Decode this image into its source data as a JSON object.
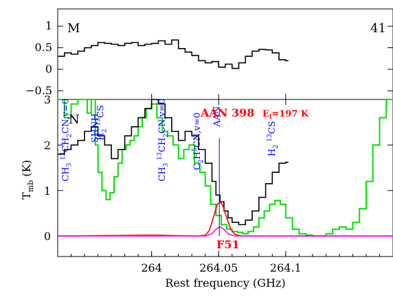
{
  "chart_data": [
    {
      "type": "line",
      "panel": "top",
      "corner_labels": {
        "left": "M",
        "right": "41"
      },
      "xlim": [
        263.93,
        264.18
      ],
      "ylim": [
        -0.7,
        1.4
      ],
      "y_ticks": [
        -0.5,
        0,
        0.5,
        1
      ],
      "y_tick_labels": [
        "−0.5",
        "0",
        "0.5",
        "1"
      ],
      "series": [
        {
          "color": "#000000",
          "step": true,
          "x": [
            263.93,
            263.935,
            263.94,
            263.945,
            263.95,
            263.955,
            263.96,
            263.965,
            263.97,
            263.975,
            263.98,
            263.985,
            263.99,
            263.995,
            264.0,
            264.005,
            264.01,
            264.015,
            264.02,
            264.025,
            264.03,
            264.035,
            264.04,
            264.045,
            264.05,
            264.055,
            264.06,
            264.065,
            264.07,
            264.075,
            264.08,
            264.085,
            264.09,
            264.095,
            264.1
          ],
          "values": [
            0.3,
            0.38,
            0.35,
            0.42,
            0.5,
            0.55,
            0.62,
            0.6,
            0.58,
            0.55,
            0.6,
            0.62,
            0.55,
            0.58,
            0.6,
            0.66,
            0.58,
            0.68,
            0.48,
            0.4,
            0.32,
            0.2,
            0.15,
            0.18,
            0.05,
            0.12,
            0.02,
            0.15,
            0.3,
            0.42,
            0.46,
            0.45,
            0.38,
            0.22,
            0.2
          ]
        }
      ]
    },
    {
      "type": "line",
      "panel": "bottom",
      "title_line": "AAN 398",
      "energy_label": "E",
      "energy_sub": "l",
      "energy_value": "=197 K",
      "marker_label": "F51",
      "xlabel": "Rest frequency (GHz)",
      "ylabel": "T",
      "ylabel_sub": "mb",
      "ylabel_unit": " (K)",
      "xlim": [
        263.93,
        264.18
      ],
      "ylim": [
        -0.45,
        3.0
      ],
      "x_ticks": [
        264,
        264.05,
        264.1
      ],
      "x_tick_labels": [
        "264",
        "264.05",
        "264.1"
      ],
      "y_ticks": [
        0,
        1,
        2,
        3
      ],
      "y_tick_labels": [
        "0",
        "1",
        "2",
        "3"
      ],
      "corner_mark": "N",
      "species_labels": [
        {
          "x": 263.938,
          "y": 1.2,
          "species": "CH3 13CH2CN,v=0",
          "html": [
            "CH",
            "3",
            " ",
            "13",
            "CH",
            "2",
            "CN,v=0"
          ]
        },
        {
          "x": 263.96,
          "y": 2.05,
          "species": "SH2 NH",
          "html": [
            "SH",
            "",
            "",
            "",
            "NH",
            "",
            ""
          ]
        },
        {
          "x": 263.964,
          "y": 2.1,
          "species": "H2 13CS",
          "html": [
            "H",
            "2",
            " ",
            "13",
            "CS",
            "",
            ""
          ]
        },
        {
          "x": 264.01,
          "y": 1.2,
          "species": "CH3 13CH2CN,v=0",
          "html": [
            "CH",
            "3",
            " ",
            "13",
            "CH",
            "2",
            "CN,v=0"
          ]
        },
        {
          "x": 264.036,
          "y": 1.45,
          "species": "C2H5CN,v=0",
          "html": [
            "C",
            "2",
            "H",
            "5",
            "CN,v=0",
            "",
            ""
          ]
        },
        {
          "x": 264.051,
          "y": 2.4,
          "species": "AAN",
          "html": [
            "AAN",
            "",
            "",
            "",
            "",
            "",
            ""
          ]
        },
        {
          "x": 264.092,
          "y": 1.75,
          "species": "H2 13CS",
          "html": [
            "H",
            "2",
            " ",
            "13",
            "CS",
            "",
            ""
          ]
        }
      ],
      "series": [
        {
          "color": "#00e000",
          "step": true,
          "x": [
            263.93,
            263.935,
            263.94,
            263.945,
            263.948,
            263.952,
            263.955,
            263.958,
            263.96,
            263.963,
            263.966,
            263.969,
            263.972,
            263.975,
            263.978,
            263.981,
            263.984,
            263.987,
            263.99,
            263.993,
            263.996,
            264.0,
            264.004,
            264.008,
            264.012,
            264.016,
            264.02,
            264.024,
            264.028,
            264.032,
            264.036,
            264.04,
            264.044,
            264.048,
            264.052,
            264.056,
            264.06,
            264.064,
            264.068,
            264.072,
            264.076,
            264.08,
            264.084,
            264.088,
            264.092,
            264.096,
            264.1,
            264.105,
            264.11,
            264.115,
            264.12,
            264.125,
            264.13,
            264.135,
            264.14,
            264.145,
            264.15,
            264.155,
            264.16,
            264.165,
            264.17,
            264.175,
            264.18
          ],
          "values": [
            3.0,
            2.6,
            2.9,
            3.0,
            3.0,
            2.7,
            3.0,
            2.0,
            1.4,
            1.0,
            0.8,
            0.95,
            1.3,
            1.6,
            1.9,
            2.0,
            2.1,
            2.2,
            2.4,
            2.6,
            2.8,
            2.9,
            2.6,
            2.3,
            2.2,
            2.0,
            1.7,
            1.9,
            2.0,
            1.6,
            1.4,
            1.1,
            0.7,
            0.45,
            0.25,
            0.15,
            0.1,
            0.08,
            0.05,
            0.1,
            0.2,
            0.4,
            0.55,
            0.7,
            0.78,
            0.7,
            0.4,
            0.15,
            0.05,
            0.02,
            0.0,
            0.0,
            0.05,
            0.15,
            0.2,
            0.15,
            0.3,
            0.6,
            1.2,
            2.0,
            2.6,
            3.0,
            3.0
          ]
        },
        {
          "color": "#000000",
          "step": true,
          "x": [
            263.93,
            263.935,
            263.94,
            263.945,
            263.95,
            263.955,
            263.96,
            263.965,
            263.97,
            263.975,
            263.98,
            263.985,
            263.99,
            263.995,
            264.0,
            264.005,
            264.01,
            264.015,
            264.02,
            264.025,
            264.03,
            264.035,
            264.04,
            264.045,
            264.048,
            264.051,
            264.054,
            264.057,
            264.06,
            264.065,
            264.07,
            264.075,
            264.08,
            264.085,
            264.09,
            264.095,
            264.1
          ],
          "values": [
            1.8,
            1.9,
            2.0,
            2.1,
            2.3,
            2.4,
            2.2,
            2.0,
            1.7,
            1.9,
            2.2,
            2.4,
            2.6,
            2.8,
            3.0,
            2.9,
            2.6,
            2.3,
            2.1,
            2.3,
            2.2,
            1.9,
            1.6,
            1.2,
            0.9,
            0.75,
            0.55,
            0.4,
            0.3,
            0.25,
            0.35,
            0.55,
            0.85,
            1.15,
            1.4,
            1.6,
            1.62
          ]
        },
        {
          "color": "#ff0000",
          "step": false,
          "x": [
            263.93,
            264.0,
            264.035,
            264.04,
            264.043,
            264.046,
            264.049,
            264.051,
            264.053,
            264.056,
            264.059,
            264.062,
            264.067,
            264.08,
            264.18
          ],
          "values": [
            0.0,
            0.02,
            0.0,
            0.02,
            0.12,
            0.4,
            0.7,
            0.75,
            0.68,
            0.4,
            0.15,
            0.04,
            0.0,
            0.0,
            0.0
          ]
        },
        {
          "color": "#ff00ff",
          "step": false,
          "x": [
            263.93,
            264.04,
            264.045,
            264.048,
            264.051,
            264.054,
            264.057,
            264.062,
            264.18
          ],
          "values": [
            0.0,
            0.0,
            0.05,
            0.15,
            0.2,
            0.15,
            0.05,
            0.0,
            0.0
          ]
        }
      ]
    }
  ]
}
